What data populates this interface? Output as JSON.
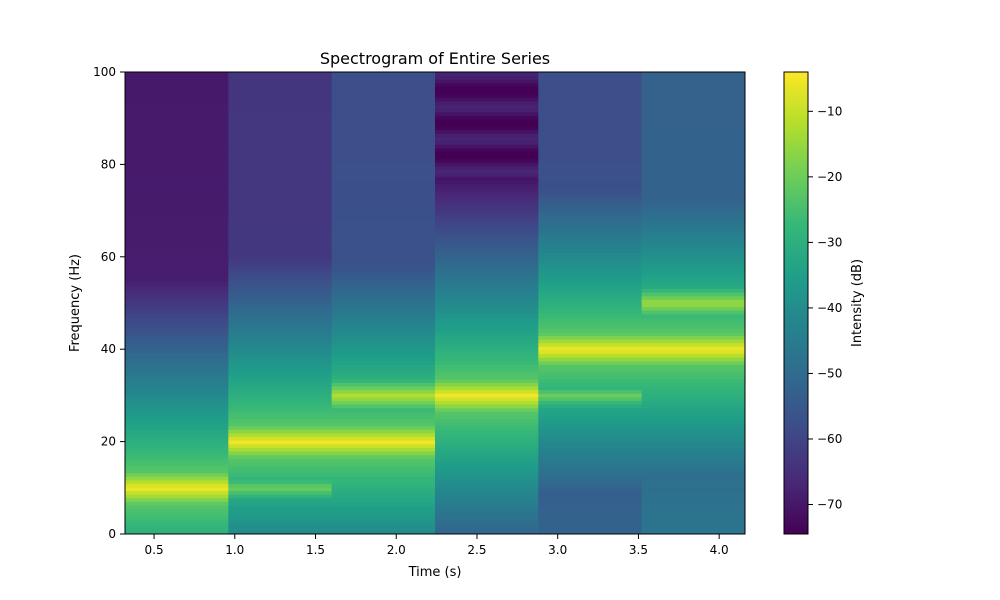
{
  "chart_data": {
    "type": "heatmap",
    "title": "Spectrogram of Entire Series",
    "xlabel": "Time (s)",
    "ylabel": "Frequency (Hz)",
    "colorbar_label": "Intensity (dB)",
    "colormap": "viridis",
    "xlim": [
      0.32,
      4.16
    ],
    "ylim": [
      0,
      100
    ],
    "zlim": [
      -74.5,
      -4
    ],
    "x_ticks": [
      0.5,
      1.0,
      1.5,
      2.0,
      2.5,
      3.0,
      3.5,
      4.0
    ],
    "x_tick_labels": [
      "0.5",
      "1.0",
      "1.5",
      "2.0",
      "2.5",
      "3.0",
      "3.5",
      "4.0"
    ],
    "y_ticks": [
      0,
      20,
      40,
      60,
      80,
      100
    ],
    "y_tick_labels": [
      "0",
      "20",
      "40",
      "60",
      "80",
      "100"
    ],
    "colorbar_ticks": [
      -70,
      -60,
      -50,
      -40,
      -30,
      -20,
      -10
    ],
    "colorbar_tick_labels": [
      "−70",
      "−60",
      "−50",
      "−40",
      "−30",
      "−20",
      "−10"
    ],
    "grid": false,
    "segments": [
      {
        "t_start": 0.32,
        "t_end": 0.96,
        "tones": [
          {
            "freq": 10,
            "db": -5
          }
        ],
        "background_db": -70
      },
      {
        "t_start": 0.96,
        "t_end": 1.6,
        "tones": [
          {
            "freq": 20,
            "db": -5
          },
          {
            "freq": 10,
            "db": -20
          }
        ],
        "background_db": -64
      },
      {
        "t_start": 1.6,
        "t_end": 2.24,
        "tones": [
          {
            "freq": 20,
            "db": -5
          },
          {
            "freq": 30,
            "db": -12
          }
        ],
        "background_db": -58
      },
      {
        "t_start": 2.24,
        "t_end": 2.88,
        "tones": [
          {
            "freq": 30,
            "db": -5
          }
        ],
        "background_db": -72,
        "striped": true
      },
      {
        "t_start": 2.88,
        "t_end": 3.52,
        "tones": [
          {
            "freq": 40,
            "db": -5
          },
          {
            "freq": 30,
            "db": -20
          }
        ],
        "background_db": -58
      },
      {
        "t_start": 3.52,
        "t_end": 4.16,
        "tones": [
          {
            "freq": 40,
            "db": -5
          },
          {
            "freq": 50,
            "db": -14
          }
        ],
        "background_db": -53
      }
    ]
  }
}
